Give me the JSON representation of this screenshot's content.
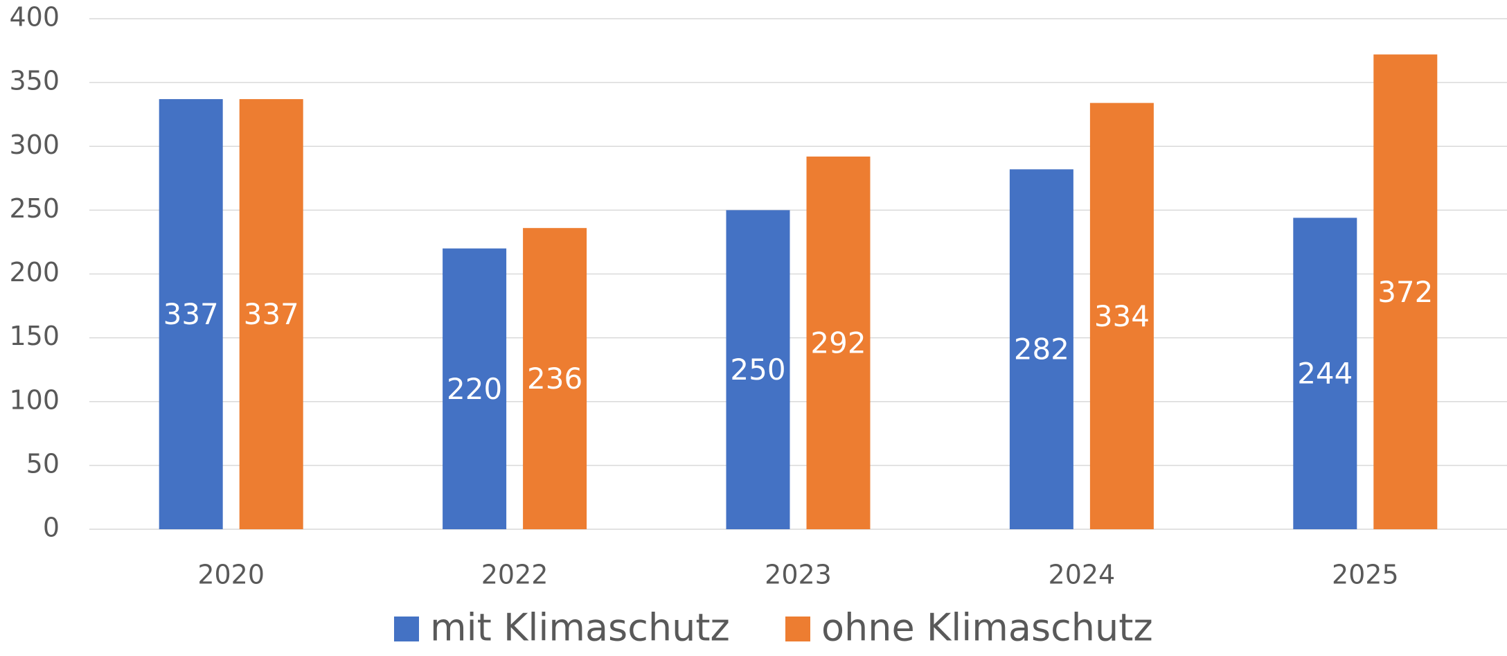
{
  "chart_data": {
    "type": "bar",
    "categories": [
      "2020",
      "2022",
      "2023",
      "2024",
      "2025"
    ],
    "series": [
      {
        "name": "mit Klimaschutz",
        "color": "#4472c4",
        "values": [
          337,
          220,
          250,
          282,
          244
        ]
      },
      {
        "name": "ohne Klimaschutz",
        "color": "#ed7d31",
        "values": [
          337,
          236,
          292,
          334,
          372
        ]
      }
    ],
    "ylim": [
      0,
      400
    ],
    "yticks": [
      0,
      50,
      100,
      150,
      200,
      250,
      300,
      350,
      400
    ],
    "grid": true,
    "legend": "bottom"
  }
}
